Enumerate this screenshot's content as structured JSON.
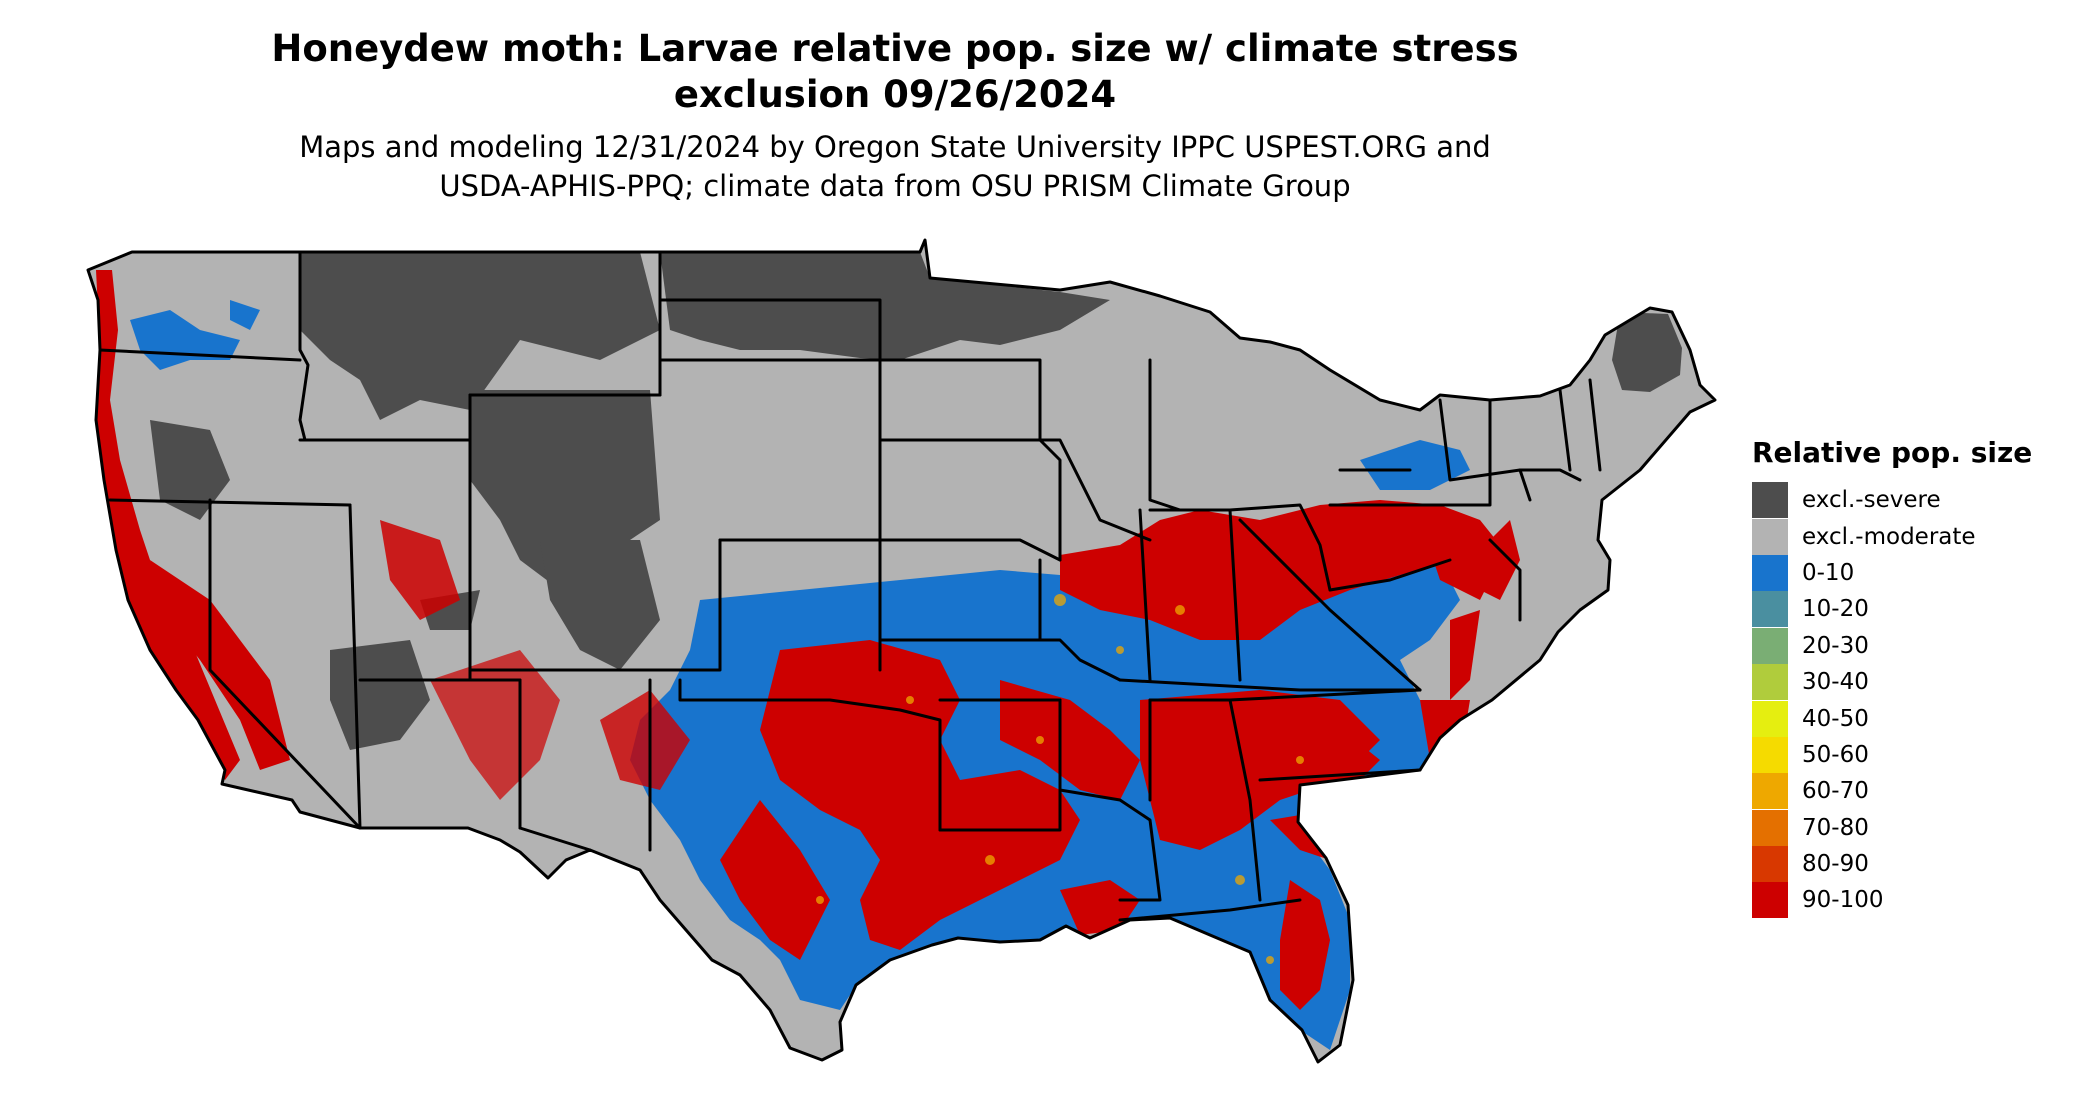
{
  "header": {
    "title_line1": "Honeydew moth: Larvae relative pop. size w/ climate stress",
    "title_line2": "exclusion 09/26/2024",
    "subtitle_line1": "Maps and modeling 12/31/2024 by Oregon State University IPPC USPEST.ORG and",
    "subtitle_line2": "USDA-APHIS-PPQ; climate data from OSU PRISM Climate Group"
  },
  "legend": {
    "title": "Relative pop. size",
    "items": [
      {
        "label": "excl.-severe",
        "color": "#4d4d4d"
      },
      {
        "label": "excl.-moderate",
        "color": "#b3b3b3"
      },
      {
        "label": "0-10",
        "color": "#1874cd"
      },
      {
        "label": "10-20",
        "color": "#4a8fa0"
      },
      {
        "label": "20-30",
        "color": "#7aae74"
      },
      {
        "label": "30-40",
        "color": "#b0cc3c"
      },
      {
        "label": "40-50",
        "color": "#e5ee10"
      },
      {
        "label": "50-60",
        "color": "#f5db00"
      },
      {
        "label": "60-70",
        "color": "#eea800"
      },
      {
        "label": "70-80",
        "color": "#e47000"
      },
      {
        "label": "80-90",
        "color": "#d83800"
      },
      {
        "label": "90-100",
        "color": "#cd0000"
      }
    ]
  }
}
